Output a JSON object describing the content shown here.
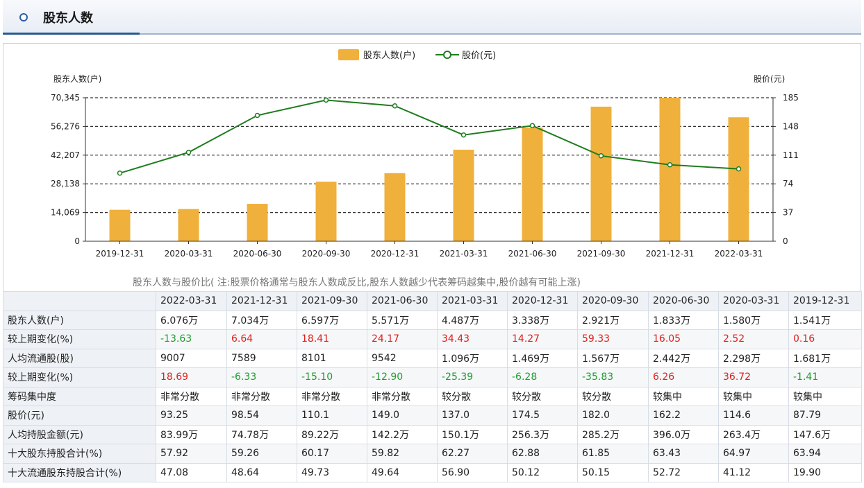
{
  "header": {
    "title": "股东人数"
  },
  "chart_data": {
    "type": "bar+line",
    "categories": [
      "2019-12-31",
      "2020-03-31",
      "2020-06-30",
      "2020-09-30",
      "2020-12-31",
      "2021-03-31",
      "2021-06-30",
      "2021-09-30",
      "2021-12-31",
      "2022-03-31"
    ],
    "series": [
      {
        "name": "股东人数(户)",
        "type": "bar",
        "axis": "left",
        "color": "#f0b03c",
        "values": [
          15410,
          15800,
          18330,
          29210,
          33380,
          44870,
          55710,
          65970,
          70340,
          60760
        ]
      },
      {
        "name": "股价(元)",
        "type": "line",
        "axis": "right",
        "color": "#1e7d1e",
        "values": [
          87.79,
          114.6,
          162.2,
          182.0,
          174.5,
          137.0,
          149.0,
          110.1,
          98.54,
          93.25
        ]
      }
    ],
    "ylabel_left": "股东人数(户)",
    "ylabel_right": "股价(元)",
    "yticks_left": [
      "0",
      "14,069",
      "28,138",
      "42,207",
      "56,276",
      "70,345"
    ],
    "ylim_left": [
      0,
      70345
    ],
    "yticks_right": [
      "0",
      "37",
      "74",
      "111",
      "148",
      "185"
    ],
    "ylim_right": [
      0,
      185
    ],
    "legend_position": "top-center",
    "grid": true,
    "caption": "股东人数与股价比( 注:股票价格通常与股东人数成反比,股东人数越少代表筹码越集中,股价越有可能上涨)"
  },
  "table": {
    "headers": [
      "",
      "2022-03-31",
      "2021-12-31",
      "2021-09-30",
      "2021-06-30",
      "2021-03-31",
      "2020-12-31",
      "2020-09-30",
      "2020-06-30",
      "2020-03-31",
      "2019-12-31"
    ],
    "rows": [
      {
        "label": "股东人数(户)",
        "cells": [
          "6.076万",
          "7.034万",
          "6.597万",
          "5.571万",
          "4.487万",
          "3.338万",
          "2.921万",
          "1.833万",
          "1.580万",
          "1.541万"
        ]
      },
      {
        "label": "较上期变化(%)",
        "colored": true,
        "cells": [
          "-13.63",
          "6.64",
          "18.41",
          "24.17",
          "34.43",
          "14.27",
          "59.33",
          "16.05",
          "2.52",
          "0.16"
        ]
      },
      {
        "label": "人均流通股(股)",
        "cells": [
          "9007",
          "7589",
          "8101",
          "9542",
          "1.096万",
          "1.469万",
          "1.567万",
          "2.442万",
          "2.298万",
          "1.681万"
        ]
      },
      {
        "label": "较上期变化(%)",
        "colored": true,
        "cells": [
          "18.69",
          "-6.33",
          "-15.10",
          "-12.90",
          "-25.39",
          "-6.28",
          "-35.83",
          "6.26",
          "36.72",
          "-1.41"
        ]
      },
      {
        "label": "筹码集中度",
        "cells": [
          "非常分散",
          "非常分散",
          "非常分散",
          "非常分散",
          "较分散",
          "较分散",
          "较分散",
          "较集中",
          "较集中",
          "较集中"
        ]
      },
      {
        "label": "股价(元)",
        "cells": [
          "93.25",
          "98.54",
          "110.1",
          "149.0",
          "137.0",
          "174.5",
          "182.0",
          "162.2",
          "114.6",
          "87.79"
        ]
      },
      {
        "label": "人均持股金额(元)",
        "cells": [
          "83.99万",
          "74.78万",
          "89.22万",
          "142.2万",
          "150.1万",
          "256.3万",
          "285.2万",
          "396.0万",
          "263.4万",
          "147.6万"
        ]
      },
      {
        "label": "十大股东持股合计(%)",
        "cells": [
          "57.92",
          "59.26",
          "60.17",
          "59.82",
          "62.27",
          "62.88",
          "61.85",
          "63.43",
          "64.97",
          "63.94"
        ]
      },
      {
        "label": "十大流通股东持股合计(%)",
        "cells": [
          "47.08",
          "48.64",
          "49.73",
          "49.64",
          "56.90",
          "50.12",
          "50.15",
          "52.72",
          "41.12",
          "19.90"
        ]
      }
    ]
  }
}
